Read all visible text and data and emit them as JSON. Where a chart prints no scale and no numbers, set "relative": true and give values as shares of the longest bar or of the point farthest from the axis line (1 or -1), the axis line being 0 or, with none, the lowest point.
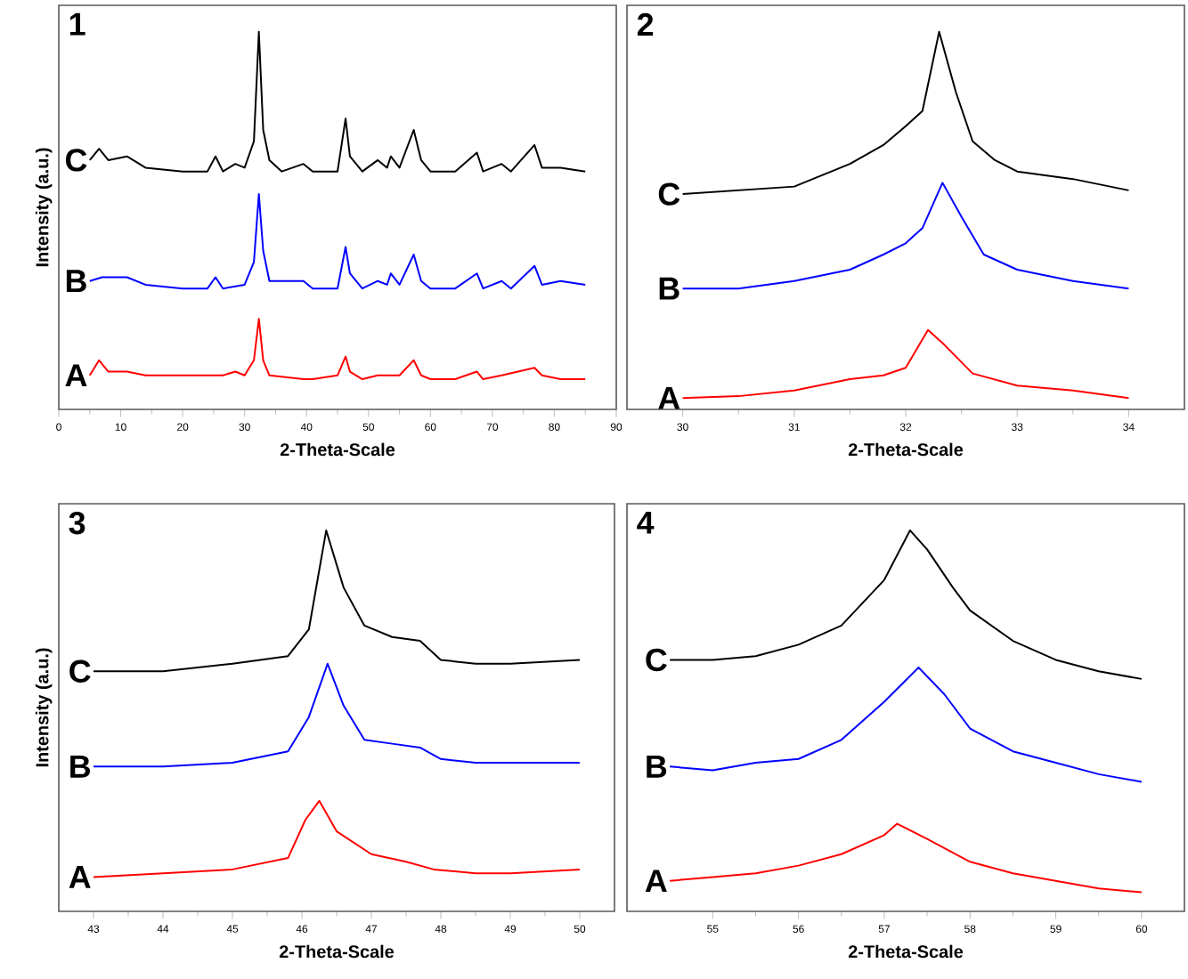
{
  "chart_data": [
    {
      "type": "line",
      "title": "1",
      "xlabel": "2-Theta-Scale",
      "ylabel": "Intensity (a.u.)",
      "relative": true,
      "tick_labels": "x",
      "xlim": [
        0,
        90
      ],
      "xticks": [
        0,
        10,
        20,
        30,
        40,
        50,
        60,
        70,
        80,
        90
      ],
      "series": [
        {
          "name": "C",
          "color": "#000000",
          "x": [
            5,
            6.5,
            8,
            11,
            14,
            20,
            24,
            25.3,
            26.5,
            28.5,
            30,
            31.5,
            32.3,
            33,
            34,
            36,
            39.5,
            41,
            45,
            46.3,
            47,
            49,
            51.5,
            53,
            53.6,
            55,
            57.3,
            58.5,
            60,
            64,
            67.5,
            68.5,
            71.5,
            73,
            76.8,
            78,
            81,
            85
          ],
          "values": [
            0.66,
            0.69,
            0.66,
            0.67,
            0.64,
            0.63,
            0.63,
            0.67,
            0.63,
            0.65,
            0.64,
            0.71,
            1,
            0.74,
            0.66,
            0.63,
            0.65,
            0.63,
            0.63,
            0.77,
            0.67,
            0.63,
            0.66,
            0.64,
            0.67,
            0.64,
            0.74,
            0.66,
            0.63,
            0.63,
            0.68,
            0.63,
            0.65,
            0.63,
            0.7,
            0.64,
            0.64,
            0.63
          ]
        },
        {
          "name": "B",
          "color": "#0000ff",
          "x": [
            5,
            7,
            11,
            14,
            20,
            24,
            25.3,
            26.5,
            30,
            31.5,
            32.3,
            33,
            34,
            39.5,
            41,
            45,
            46.3,
            47,
            49,
            51.5,
            53,
            53.6,
            55,
            57.3,
            58.5,
            60,
            64,
            67.5,
            68.5,
            71.5,
            73,
            76.8,
            78,
            81,
            85
          ],
          "values": [
            0.34,
            0.35,
            0.35,
            0.33,
            0.32,
            0.32,
            0.35,
            0.32,
            0.33,
            0.39,
            0.57,
            0.42,
            0.34,
            0.34,
            0.32,
            0.32,
            0.43,
            0.36,
            0.32,
            0.34,
            0.33,
            0.36,
            0.33,
            0.41,
            0.34,
            0.32,
            0.32,
            0.36,
            0.32,
            0.34,
            0.32,
            0.38,
            0.33,
            0.34,
            0.33
          ]
        },
        {
          "name": "A",
          "color": "#ff0000",
          "x": [
            5,
            6.5,
            8,
            11,
            14,
            20,
            24,
            25.3,
            26.5,
            28.5,
            30,
            31.5,
            32.3,
            33,
            34,
            39.5,
            41,
            45,
            46.3,
            47,
            49,
            51.5,
            53.6,
            55,
            57.3,
            58.5,
            60,
            64,
            67.5,
            68.5,
            71.5,
            76.8,
            78,
            81,
            85
          ],
          "values": [
            0.09,
            0.13,
            0.1,
            0.1,
            0.09,
            0.09,
            0.09,
            0.09,
            0.09,
            0.1,
            0.09,
            0.13,
            0.24,
            0.13,
            0.09,
            0.08,
            0.08,
            0.09,
            0.14,
            0.1,
            0.08,
            0.09,
            0.09,
            0.09,
            0.13,
            0.09,
            0.08,
            0.08,
            0.1,
            0.08,
            0.09,
            0.11,
            0.09,
            0.08,
            0.08
          ]
        }
      ]
    },
    {
      "type": "line",
      "title": "2",
      "xlabel": "2-Theta-Scale",
      "relative": true,
      "tick_labels": "x",
      "xlim": [
        29.5,
        34.5
      ],
      "xticks": [
        30,
        31,
        32,
        33,
        34
      ],
      "series": [
        {
          "name": "C",
          "color": "#000000",
          "x": [
            30,
            30.5,
            31,
            31.5,
            31.8,
            32,
            32.15,
            32.3,
            32.45,
            32.6,
            32.8,
            33,
            33.5,
            34
          ],
          "values": [
            0.57,
            0.58,
            0.59,
            0.65,
            0.7,
            0.75,
            0.79,
            1,
            0.84,
            0.71,
            0.66,
            0.63,
            0.61,
            0.58
          ]
        },
        {
          "name": "B",
          "color": "#0000ff",
          "x": [
            30,
            30.5,
            31,
            31.5,
            31.8,
            32,
            32.15,
            32.33,
            32.5,
            32.7,
            33,
            33.5,
            34
          ],
          "values": [
            0.32,
            0.32,
            0.34,
            0.37,
            0.41,
            0.44,
            0.48,
            0.6,
            0.51,
            0.41,
            0.37,
            0.34,
            0.32
          ]
        },
        {
          "name": "A",
          "color": "#ff0000",
          "x": [
            30,
            30.5,
            31,
            31.5,
            31.8,
            32,
            32.2,
            32.35,
            32.6,
            33,
            33.5,
            34
          ],
          "values": [
            0.03,
            0.035,
            0.05,
            0.08,
            0.09,
            0.11,
            0.21,
            0.17,
            0.095,
            0.063,
            0.05,
            0.03
          ]
        }
      ]
    },
    {
      "type": "line",
      "title": "3",
      "xlabel": "2-Theta-Scale",
      "ylabel": "Intensity (a.u.)",
      "relative": true,
      "tick_labels": "x",
      "xlim": [
        42.5,
        50.5
      ],
      "xticks": [
        43,
        44,
        45,
        46,
        47,
        48,
        49,
        50
      ],
      "series": [
        {
          "name": "C",
          "color": "#000000",
          "x": [
            43,
            44,
            45,
            45.8,
            46.1,
            46.35,
            46.6,
            46.9,
            47.3,
            47.7,
            48,
            48.5,
            49,
            50
          ],
          "values": [
            0.63,
            0.63,
            0.65,
            0.67,
            0.74,
            1,
            0.85,
            0.75,
            0.72,
            0.71,
            0.66,
            0.65,
            0.65,
            0.66
          ]
        },
        {
          "name": "B",
          "color": "#0000ff",
          "x": [
            43,
            44,
            45,
            45.8,
            46.1,
            46.37,
            46.6,
            46.9,
            47.3,
            47.7,
            48,
            48.5,
            49,
            50
          ],
          "values": [
            0.38,
            0.38,
            0.39,
            0.42,
            0.51,
            0.65,
            0.54,
            0.45,
            0.44,
            0.43,
            0.4,
            0.39,
            0.39,
            0.39
          ]
        },
        {
          "name": "A",
          "color": "#ff0000",
          "x": [
            43,
            44,
            45,
            45.8,
            46.05,
            46.25,
            46.5,
            47,
            47.5,
            47.9,
            48.5,
            49,
            50
          ],
          "values": [
            0.09,
            0.1,
            0.11,
            0.14,
            0.24,
            0.29,
            0.21,
            0.15,
            0.13,
            0.11,
            0.1,
            0.1,
            0.11
          ]
        }
      ]
    },
    {
      "type": "line",
      "title": "4",
      "xlabel": "2-Theta-Scale",
      "relative": true,
      "tick_labels": "x",
      "xlim": [
        54,
        60.5
      ],
      "xticks": [
        55,
        56,
        57,
        58,
        59,
        60
      ],
      "series": [
        {
          "name": "C",
          "color": "#000000",
          "x": [
            54.5,
            55,
            55.5,
            56,
            56.5,
            57,
            57.3,
            57.5,
            57.8,
            58,
            58.5,
            59,
            59.5,
            60
          ],
          "values": [
            0.66,
            0.66,
            0.67,
            0.7,
            0.75,
            0.87,
            1,
            0.95,
            0.85,
            0.79,
            0.71,
            0.66,
            0.63,
            0.61
          ]
        },
        {
          "name": "B",
          "color": "#0000ff",
          "x": [
            54.5,
            55,
            55.5,
            56,
            56.5,
            57,
            57.4,
            57.7,
            58,
            58.5,
            59,
            59.5,
            60
          ],
          "values": [
            0.38,
            0.37,
            0.39,
            0.4,
            0.45,
            0.55,
            0.64,
            0.57,
            0.48,
            0.42,
            0.39,
            0.36,
            0.34
          ]
        },
        {
          "name": "A",
          "color": "#ff0000",
          "x": [
            54.5,
            55,
            55.5,
            56,
            56.5,
            57,
            57.15,
            57.5,
            58,
            58.5,
            59,
            59.5,
            60
          ],
          "values": [
            0.08,
            0.09,
            0.1,
            0.12,
            0.15,
            0.2,
            0.23,
            0.19,
            0.13,
            0.1,
            0.08,
            0.06,
            0.05
          ]
        }
      ]
    }
  ]
}
